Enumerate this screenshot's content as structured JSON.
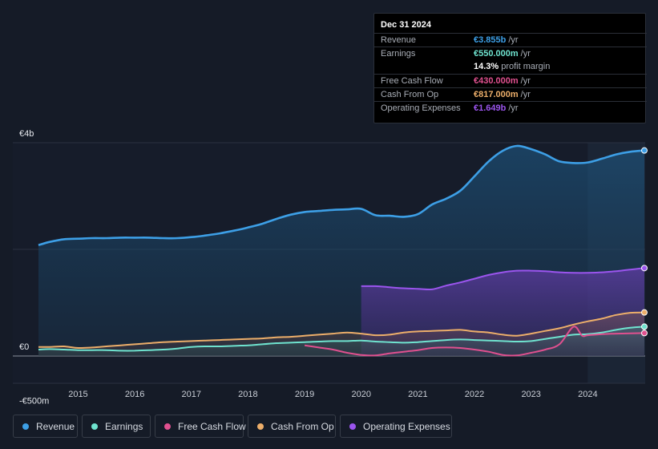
{
  "tooltip": {
    "date": "Dec 31 2024",
    "rows": [
      {
        "label": "Revenue",
        "value": "€3.855b",
        "unit": "/yr",
        "color": "#3d9fe6"
      },
      {
        "label": "Earnings",
        "value": "€550.000m",
        "unit": "/yr",
        "color": "#6fe3cf"
      },
      {
        "label": "",
        "value": "14.3%",
        "unit": "profit margin",
        "color": "#ffffff"
      },
      {
        "label": "Free Cash Flow",
        "value": "€430.000m",
        "unit": "/yr",
        "color": "#e0508f"
      },
      {
        "label": "Cash From Op",
        "value": "€817.000m",
        "unit": "/yr",
        "color": "#ecae6a"
      },
      {
        "label": "Operating Expenses",
        "value": "€1.649b",
        "unit": "/yr",
        "color": "#9b55ee"
      }
    ]
  },
  "legend": [
    {
      "label": "Revenue",
      "color": "#3d9fe6"
    },
    {
      "label": "Earnings",
      "color": "#6fe3cf"
    },
    {
      "label": "Free Cash Flow",
      "color": "#e0508f"
    },
    {
      "label": "Cash From Op",
      "color": "#ecae6a"
    },
    {
      "label": "Operating Expenses",
      "color": "#9b55ee"
    }
  ],
  "chart_data": {
    "type": "area",
    "currency": "EUR",
    "unit": "millions",
    "y_axis_labels": [
      "€4b",
      "€0",
      "-€500m"
    ],
    "ylim": [
      -500,
      4000
    ],
    "xlim": [
      2014.3,
      2025.0
    ],
    "x_ticks": [
      "2015",
      "2016",
      "2017",
      "2018",
      "2019",
      "2020",
      "2021",
      "2022",
      "2023",
      "2024"
    ],
    "x_tick_values": [
      2015,
      2016,
      2017,
      2018,
      2019,
      2020,
      2021,
      2022,
      2023,
      2024
    ],
    "highlight_from": 2024.0,
    "series": [
      {
        "name": "Revenue",
        "color": "#3d9fe6",
        "fill": true,
        "x": [
          2014.3,
          2014.5,
          2014.75,
          2015.0,
          2015.25,
          2015.5,
          2015.75,
          2016.0,
          2016.25,
          2016.5,
          2016.75,
          2017.0,
          2017.25,
          2017.5,
          2017.75,
          2018.0,
          2018.25,
          2018.5,
          2018.75,
          2019.0,
          2019.25,
          2019.5,
          2019.75,
          2020.0,
          2020.25,
          2020.5,
          2020.75,
          2021.0,
          2021.25,
          2021.5,
          2021.75,
          2022.0,
          2022.25,
          2022.5,
          2022.75,
          2023.0,
          2023.25,
          2023.5,
          2023.75,
          2024.0,
          2024.25,
          2024.5,
          2024.75,
          2025.0
        ],
        "values": [
          2080,
          2140,
          2190,
          2200,
          2210,
          2210,
          2220,
          2220,
          2220,
          2210,
          2210,
          2230,
          2260,
          2300,
          2350,
          2410,
          2480,
          2570,
          2650,
          2700,
          2720,
          2740,
          2750,
          2760,
          2640,
          2630,
          2610,
          2660,
          2840,
          2950,
          3100,
          3370,
          3650,
          3850,
          3940,
          3880,
          3780,
          3650,
          3620,
          3630,
          3700,
          3780,
          3830,
          3855
        ]
      },
      {
        "name": "Operating Expenses",
        "color": "#9b55ee",
        "fill": true,
        "x": [
          2020.0,
          2020.25,
          2020.5,
          2020.75,
          2021.0,
          2021.25,
          2021.5,
          2021.75,
          2022.0,
          2022.25,
          2022.5,
          2022.75,
          2023.0,
          2023.25,
          2023.5,
          2023.75,
          2024.0,
          2024.25,
          2024.5,
          2024.75,
          2025.0
        ],
        "values": [
          1310,
          1310,
          1290,
          1270,
          1260,
          1250,
          1320,
          1380,
          1450,
          1520,
          1570,
          1600,
          1600,
          1590,
          1570,
          1560,
          1560,
          1570,
          1590,
          1620,
          1649
        ]
      },
      {
        "name": "Cash From Op",
        "color": "#ecae6a",
        "fill": true,
        "x": [
          2014.3,
          2014.5,
          2014.75,
          2015.0,
          2015.25,
          2015.5,
          2015.75,
          2016.0,
          2016.25,
          2016.5,
          2016.75,
          2017.0,
          2017.25,
          2017.5,
          2017.75,
          2018.0,
          2018.25,
          2018.5,
          2018.75,
          2019.0,
          2019.25,
          2019.5,
          2019.75,
          2020.0,
          2020.25,
          2020.5,
          2020.75,
          2021.0,
          2021.25,
          2021.5,
          2021.75,
          2022.0,
          2022.25,
          2022.5,
          2022.75,
          2023.0,
          2023.25,
          2023.5,
          2023.75,
          2024.0,
          2024.25,
          2024.5,
          2024.75,
          2025.0
        ],
        "values": [
          170,
          170,
          180,
          150,
          160,
          180,
          200,
          220,
          240,
          260,
          270,
          280,
          290,
          300,
          310,
          320,
          330,
          350,
          360,
          380,
          400,
          420,
          440,
          420,
          390,
          400,
          440,
          460,
          470,
          480,
          490,
          460,
          440,
          400,
          380,
          420,
          470,
          520,
          590,
          650,
          700,
          770,
          810,
          817
        ]
      },
      {
        "name": "Earnings",
        "color": "#6fe3cf",
        "fill": true,
        "x": [
          2014.3,
          2014.5,
          2014.75,
          2015.0,
          2015.25,
          2015.5,
          2015.75,
          2016.0,
          2016.25,
          2016.5,
          2016.75,
          2017.0,
          2017.25,
          2017.5,
          2017.75,
          2018.0,
          2018.25,
          2018.5,
          2018.75,
          2019.0,
          2019.25,
          2019.5,
          2019.75,
          2020.0,
          2020.25,
          2020.5,
          2020.75,
          2021.0,
          2021.25,
          2021.5,
          2021.75,
          2022.0,
          2022.25,
          2022.5,
          2022.75,
          2023.0,
          2023.25,
          2023.5,
          2023.75,
          2024.0,
          2024.25,
          2024.5,
          2024.75,
          2025.0
        ],
        "values": [
          120,
          130,
          120,
          110,
          110,
          110,
          100,
          100,
          110,
          120,
          140,
          170,
          180,
          180,
          190,
          200,
          220,
          240,
          250,
          260,
          270,
          280,
          280,
          290,
          270,
          260,
          250,
          260,
          280,
          300,
          310,
          300,
          290,
          280,
          270,
          280,
          320,
          360,
          400,
          410,
          440,
          490,
          530,
          550
        ]
      },
      {
        "name": "Free Cash Flow",
        "color": "#e0508f",
        "fill": false,
        "x": [
          2019.0,
          2019.25,
          2019.5,
          2019.75,
          2020.0,
          2020.25,
          2020.5,
          2020.75,
          2021.0,
          2021.25,
          2021.5,
          2021.75,
          2022.0,
          2022.25,
          2022.5,
          2022.75,
          2023.0,
          2023.25,
          2023.5,
          2023.75,
          2023.9,
          2024.0,
          2024.25,
          2024.5,
          2024.75,
          2025.0
        ],
        "values": [
          200,
          160,
          120,
          60,
          20,
          10,
          50,
          80,
          110,
          150,
          160,
          150,
          120,
          80,
          20,
          10,
          60,
          120,
          220,
          550,
          380,
          390,
          410,
          420,
          425,
          430
        ]
      }
    ]
  }
}
